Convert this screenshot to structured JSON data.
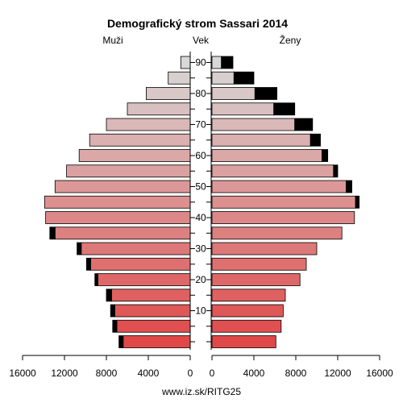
{
  "chart_data": {
    "type": "bar",
    "title": "Demografický strom Sassari 2014",
    "left_label": "Muži",
    "center_label": "Vek",
    "right_label": "Ženy",
    "footer": "www.iz.sk/RITG25",
    "age_ticks": [
      "90",
      "80",
      "70",
      "60",
      "50",
      "40",
      "30",
      "20",
      "10"
    ],
    "x_ticks": [
      "16000",
      "12000",
      "8000",
      "4000",
      "0",
      "0",
      "4000",
      "8000",
      "12000",
      "16000"
    ],
    "xlim": [
      0,
      16000
    ],
    "categories": [
      "0-4",
      "5-9",
      "10-14",
      "15-19",
      "20-24",
      "25-29",
      "30-34",
      "35-39",
      "40-44",
      "45-49",
      "50-54",
      "55-59",
      "60-64",
      "65-69",
      "70-74",
      "75-79",
      "80-84",
      "85-89",
      "90+"
    ],
    "series": [
      {
        "name": "Muži",
        "values": [
          6400,
          7000,
          7200,
          7500,
          8800,
          9500,
          10400,
          12900,
          13800,
          13900,
          12900,
          11800,
          10600,
          9600,
          8000,
          6000,
          4200,
          2100,
          900
        ],
        "extra": [
          400,
          400,
          400,
          500,
          300,
          400,
          400,
          500,
          0,
          0,
          0,
          0,
          0,
          0,
          0,
          0,
          0,
          0,
          0
        ]
      },
      {
        "name": "Ženy",
        "values": [
          6100,
          6600,
          6800,
          7000,
          8400,
          9000,
          10000,
          12400,
          13600,
          13700,
          12800,
          11600,
          10500,
          9400,
          7900,
          5900,
          4100,
          2100,
          900
        ],
        "extra": [
          0,
          0,
          0,
          0,
          0,
          0,
          0,
          0,
          0,
          350,
          550,
          400,
          550,
          950,
          1700,
          2000,
          2100,
          1900,
          1100
        ]
      }
    ]
  },
  "colors": {
    "young": "#e04848",
    "old": "#d8d8d8",
    "extra": "#000000"
  }
}
